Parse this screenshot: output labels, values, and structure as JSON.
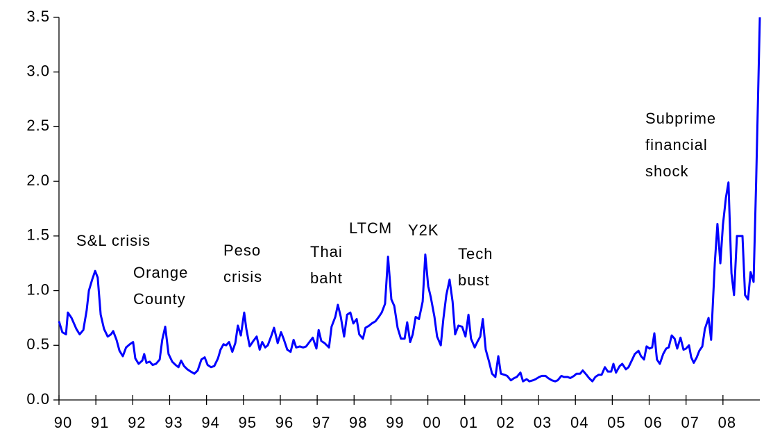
{
  "chart_data": {
    "type": "line",
    "x": [
      90.0,
      90.09,
      90.19,
      90.24,
      90.34,
      90.47,
      90.56,
      90.66,
      90.75,
      90.81,
      90.9,
      90.98,
      91.05,
      91.13,
      91.22,
      91.32,
      91.41,
      91.47,
      91.56,
      91.64,
      91.73,
      91.82,
      91.92,
      92.01,
      92.07,
      92.16,
      92.26,
      92.31,
      92.37,
      92.46,
      92.54,
      92.63,
      92.73,
      92.8,
      92.88,
      92.97,
      93.07,
      93.16,
      93.24,
      93.31,
      93.39,
      93.48,
      93.57,
      93.67,
      93.76,
      93.86,
      93.95,
      94.03,
      94.12,
      94.21,
      94.31,
      94.38,
      94.46,
      94.53,
      94.61,
      94.7,
      94.78,
      94.85,
      94.93,
      95.02,
      95.08,
      95.17,
      95.27,
      95.36,
      95.44,
      95.51,
      95.59,
      95.66,
      95.76,
      95.83,
      95.93,
      96.02,
      96.09,
      96.19,
      96.28,
      96.36,
      96.43,
      96.53,
      96.62,
      96.7,
      96.79,
      96.88,
      96.98,
      97.04,
      97.11,
      97.2,
      97.32,
      97.39,
      97.49,
      97.56,
      97.64,
      97.73,
      97.81,
      97.9,
      97.98,
      98.07,
      98.14,
      98.24,
      98.31,
      98.41,
      98.48,
      98.58,
      98.67,
      98.75,
      98.84,
      98.92,
      99.01,
      99.09,
      99.18,
      99.27,
      99.37,
      99.44,
      99.52,
      99.59,
      99.67,
      99.76,
      99.86,
      99.93,
      100.01,
      100.08,
      100.18,
      100.25,
      100.35,
      100.42,
      100.5,
      100.59,
      100.67,
      100.74,
      100.83,
      100.93,
      101.02,
      101.1,
      101.17,
      101.27,
      101.34,
      101.42,
      101.49,
      101.57,
      101.66,
      101.74,
      101.83,
      101.91,
      101.98,
      102.08,
      102.15,
      102.25,
      102.34,
      102.41,
      102.51,
      102.58,
      102.68,
      102.75,
      102.85,
      102.92,
      103.02,
      103.09,
      103.19,
      103.26,
      103.36,
      103.45,
      103.52,
      103.62,
      103.69,
      103.79,
      103.86,
      103.96,
      104.03,
      104.13,
      104.2,
      104.3,
      104.37,
      104.46,
      104.54,
      104.63,
      104.71,
      104.8,
      104.88,
      104.97,
      105.03,
      105.1,
      105.2,
      105.27,
      105.37,
      105.44,
      105.54,
      105.61,
      105.71,
      105.78,
      105.86,
      105.93,
      106.01,
      106.08,
      106.14,
      106.21,
      106.29,
      106.38,
      106.46,
      106.53,
      106.61,
      106.69,
      106.76,
      106.85,
      106.93,
      107.0,
      107.08,
      107.14,
      107.21,
      107.29,
      107.36,
      107.44,
      107.51,
      107.61,
      107.68,
      107.78,
      107.85,
      107.93,
      108.0,
      108.08,
      108.15,
      108.23,
      108.3,
      108.38,
      108.45,
      108.53,
      108.6,
      108.68,
      108.75,
      108.83,
      108.9,
      109.0
    ],
    "series": [
      {
        "color": "#0000ff",
        "values": [
          0.72,
          0.62,
          0.6,
          0.8,
          0.75,
          0.65,
          0.6,
          0.64,
          0.82,
          1.0,
          1.1,
          1.18,
          1.12,
          0.78,
          0.65,
          0.58,
          0.6,
          0.63,
          0.55,
          0.45,
          0.4,
          0.48,
          0.51,
          0.53,
          0.38,
          0.33,
          0.36,
          0.42,
          0.34,
          0.35,
          0.32,
          0.33,
          0.37,
          0.55,
          0.67,
          0.42,
          0.35,
          0.32,
          0.3,
          0.36,
          0.31,
          0.28,
          0.26,
          0.24,
          0.27,
          0.37,
          0.39,
          0.32,
          0.3,
          0.31,
          0.38,
          0.46,
          0.51,
          0.5,
          0.53,
          0.44,
          0.52,
          0.68,
          0.59,
          0.8,
          0.65,
          0.49,
          0.54,
          0.58,
          0.46,
          0.53,
          0.48,
          0.5,
          0.59,
          0.66,
          0.52,
          0.62,
          0.56,
          0.46,
          0.44,
          0.55,
          0.48,
          0.49,
          0.48,
          0.49,
          0.53,
          0.57,
          0.47,
          0.64,
          0.54,
          0.52,
          0.48,
          0.67,
          0.76,
          0.87,
          0.76,
          0.58,
          0.78,
          0.8,
          0.7,
          0.74,
          0.6,
          0.56,
          0.66,
          0.68,
          0.7,
          0.72,
          0.76,
          0.8,
          0.88,
          1.31,
          0.92,
          0.86,
          0.66,
          0.56,
          0.56,
          0.71,
          0.53,
          0.6,
          0.76,
          0.74,
          0.9,
          1.33,
          1.04,
          0.94,
          0.76,
          0.58,
          0.5,
          0.74,
          0.96,
          1.1,
          0.9,
          0.6,
          0.68,
          0.67,
          0.58,
          0.78,
          0.56,
          0.48,
          0.53,
          0.58,
          0.74,
          0.46,
          0.35,
          0.24,
          0.21,
          0.4,
          0.24,
          0.23,
          0.22,
          0.18,
          0.2,
          0.21,
          0.25,
          0.17,
          0.19,
          0.17,
          0.18,
          0.19,
          0.21,
          0.22,
          0.22,
          0.2,
          0.18,
          0.17,
          0.18,
          0.22,
          0.21,
          0.21,
          0.2,
          0.22,
          0.24,
          0.24,
          0.27,
          0.23,
          0.2,
          0.17,
          0.21,
          0.23,
          0.23,
          0.3,
          0.26,
          0.26,
          0.33,
          0.25,
          0.31,
          0.33,
          0.28,
          0.3,
          0.37,
          0.42,
          0.45,
          0.4,
          0.37,
          0.49,
          0.47,
          0.48,
          0.61,
          0.37,
          0.33,
          0.42,
          0.47,
          0.48,
          0.59,
          0.56,
          0.47,
          0.57,
          0.46,
          0.47,
          0.5,
          0.39,
          0.34,
          0.39,
          0.45,
          0.49,
          0.65,
          0.75,
          0.55,
          1.25,
          1.61,
          1.25,
          1.6,
          1.85,
          1.99,
          1.16,
          0.96,
          1.5,
          1.5,
          1.5,
          0.96,
          0.92,
          1.17,
          1.08,
          2.0,
          3.5
        ]
      }
    ],
    "xlim": [
      90,
      109
    ],
    "xticks": [
      90,
      91,
      92,
      93,
      94,
      95,
      96,
      97,
      98,
      99,
      {
        "value": 100,
        "label": "00"
      },
      {
        "value": 101,
        "label": "01"
      },
      {
        "value": 102,
        "label": "02"
      },
      {
        "value": 103,
        "label": "03"
      },
      {
        "value": 104,
        "label": "04"
      },
      {
        "value": 105,
        "label": "05"
      },
      {
        "value": 106,
        "label": "06"
      },
      {
        "value": 107,
        "label": "07"
      },
      {
        "value": 108,
        "label": "08"
      }
    ],
    "ylim": [
      0,
      3.5
    ],
    "yticks": [
      {
        "value": 0,
        "label": "0.0"
      },
      0.5,
      {
        "value": 1,
        "label": "1.0"
      },
      1.5,
      {
        "value": 2,
        "label": "2.0"
      },
      2.5,
      {
        "value": 3,
        "label": "3.0"
      },
      3.5
    ],
    "annotations": [
      [
        "S&L crisis"
      ],
      [
        "Orange",
        "County"
      ],
      [
        "Peso",
        "crisis"
      ],
      [
        "Thai",
        "baht"
      ],
      [
        "LTCM"
      ],
      [
        "Y2K"
      ],
      [
        "Tech",
        "bust"
      ],
      [
        "Subprime",
        "financial",
        "shock"
      ]
    ]
  }
}
